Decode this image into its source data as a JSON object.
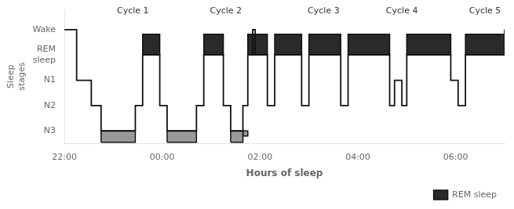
{
  "chart_data": {
    "type": "line",
    "x_label": "Hours of sleep",
    "y_label": "Sleep\nstages",
    "xlim": [
      0,
      9.0
    ],
    "ylim": [
      -0.5,
      4.8
    ],
    "xticks": [
      {
        "value": 0,
        "label": "22:00"
      },
      {
        "value": 2,
        "label": "00:00"
      },
      {
        "value": 4,
        "label": "02:00"
      },
      {
        "value": 6,
        "label": "04:00"
      },
      {
        "value": 8,
        "label": "06:00"
      }
    ],
    "yticks": [
      {
        "value": 4,
        "label": "Wake"
      },
      {
        "value": 3,
        "label": "REM\nsleep"
      },
      {
        "value": 2,
        "label": "N1"
      },
      {
        "value": 1,
        "label": "N2"
      },
      {
        "value": 0,
        "label": "N3"
      }
    ],
    "grid": false,
    "legend": "lower right",
    "series": [
      {
        "type": "line",
        "color": "#111111",
        "x": [
          0.0,
          0.25,
          0.25,
          0.55,
          0.55,
          0.75,
          0.75,
          1.45,
          1.45,
          1.6,
          1.6,
          1.95,
          1.95,
          2.1,
          2.1,
          2.7,
          2.7,
          2.85,
          2.85,
          3.25,
          3.25,
          3.4,
          3.4,
          3.65,
          3.65,
          3.75,
          3.75,
          3.85,
          3.85,
          3.9,
          3.9,
          4.15,
          4.15,
          4.3,
          4.3,
          4.85,
          4.85,
          5.0,
          5.0,
          5.65,
          5.65,
          5.8,
          5.8,
          6.65,
          6.65,
          6.75,
          6.75,
          6.9,
          6.9,
          7.0,
          7.0,
          7.9,
          7.9,
          8.05,
          8.05,
          8.2,
          8.2,
          9.0,
          9.0
        ],
        "values": [
          4,
          4,
          2,
          2,
          1,
          1,
          0,
          0,
          1,
          1,
          3,
          3,
          1,
          1,
          0,
          0,
          1,
          1,
          3,
          3,
          1,
          1,
          0,
          0,
          1,
          1,
          3,
          3,
          4,
          4,
          3,
          3,
          1,
          1,
          3,
          3,
          1,
          1,
          3,
          3,
          1,
          1,
          3,
          3,
          1,
          1,
          2,
          2,
          1,
          1,
          3,
          3,
          2,
          2,
          1,
          1,
          3,
          3,
          4
        ]
      },
      {
        "name": "REM sleep",
        "type": "area",
        "color": "#2a2a2a",
        "blocks": [
          {
            "from": 1.6,
            "to": 1.95,
            "bottom": 3.0,
            "top": 3.82
          },
          {
            "from": 2.85,
            "to": 3.25,
            "bottom": 3.0,
            "top": 3.82
          },
          {
            "from": 3.75,
            "to": 4.15,
            "bottom": 3.0,
            "top": 3.82
          },
          {
            "from": 4.3,
            "to": 4.85,
            "bottom": 3.0,
            "top": 3.82
          },
          {
            "from": 5.0,
            "to": 5.65,
            "bottom": 3.0,
            "top": 3.82
          },
          {
            "from": 5.8,
            "to": 6.65,
            "bottom": 3.0,
            "top": 3.82
          },
          {
            "from": 7.0,
            "to": 7.9,
            "bottom": 3.0,
            "top": 3.82
          },
          {
            "from": 8.2,
            "to": 9.0,
            "bottom": 3.0,
            "top": 3.82
          }
        ]
      },
      {
        "type": "area",
        "color": "#999999",
        "blocks": [
          {
            "from": 0.75,
            "to": 1.45,
            "bottom": -0.45,
            "top": 0.0
          },
          {
            "from": 2.1,
            "to": 2.7,
            "bottom": -0.45,
            "top": 0.0
          },
          {
            "from": 3.4,
            "to": 3.65,
            "bottom": -0.45,
            "top": 0.0
          },
          {
            "from": 3.65,
            "to": 3.75,
            "bottom": -0.2,
            "top": 0.0
          }
        ]
      }
    ],
    "annotations": [
      {
        "text": "Cycle 1",
        "x": 1.4,
        "y": 4.72
      },
      {
        "text": "Cycle 2",
        "x": 3.3,
        "y": 4.72
      },
      {
        "text": "Cycle 3",
        "x": 5.3,
        "y": 4.72
      },
      {
        "text": "Cycle 4",
        "x": 6.9,
        "y": 4.72
      },
      {
        "text": "Cycle 5",
        "x": 8.6,
        "y": 4.72
      }
    ]
  }
}
